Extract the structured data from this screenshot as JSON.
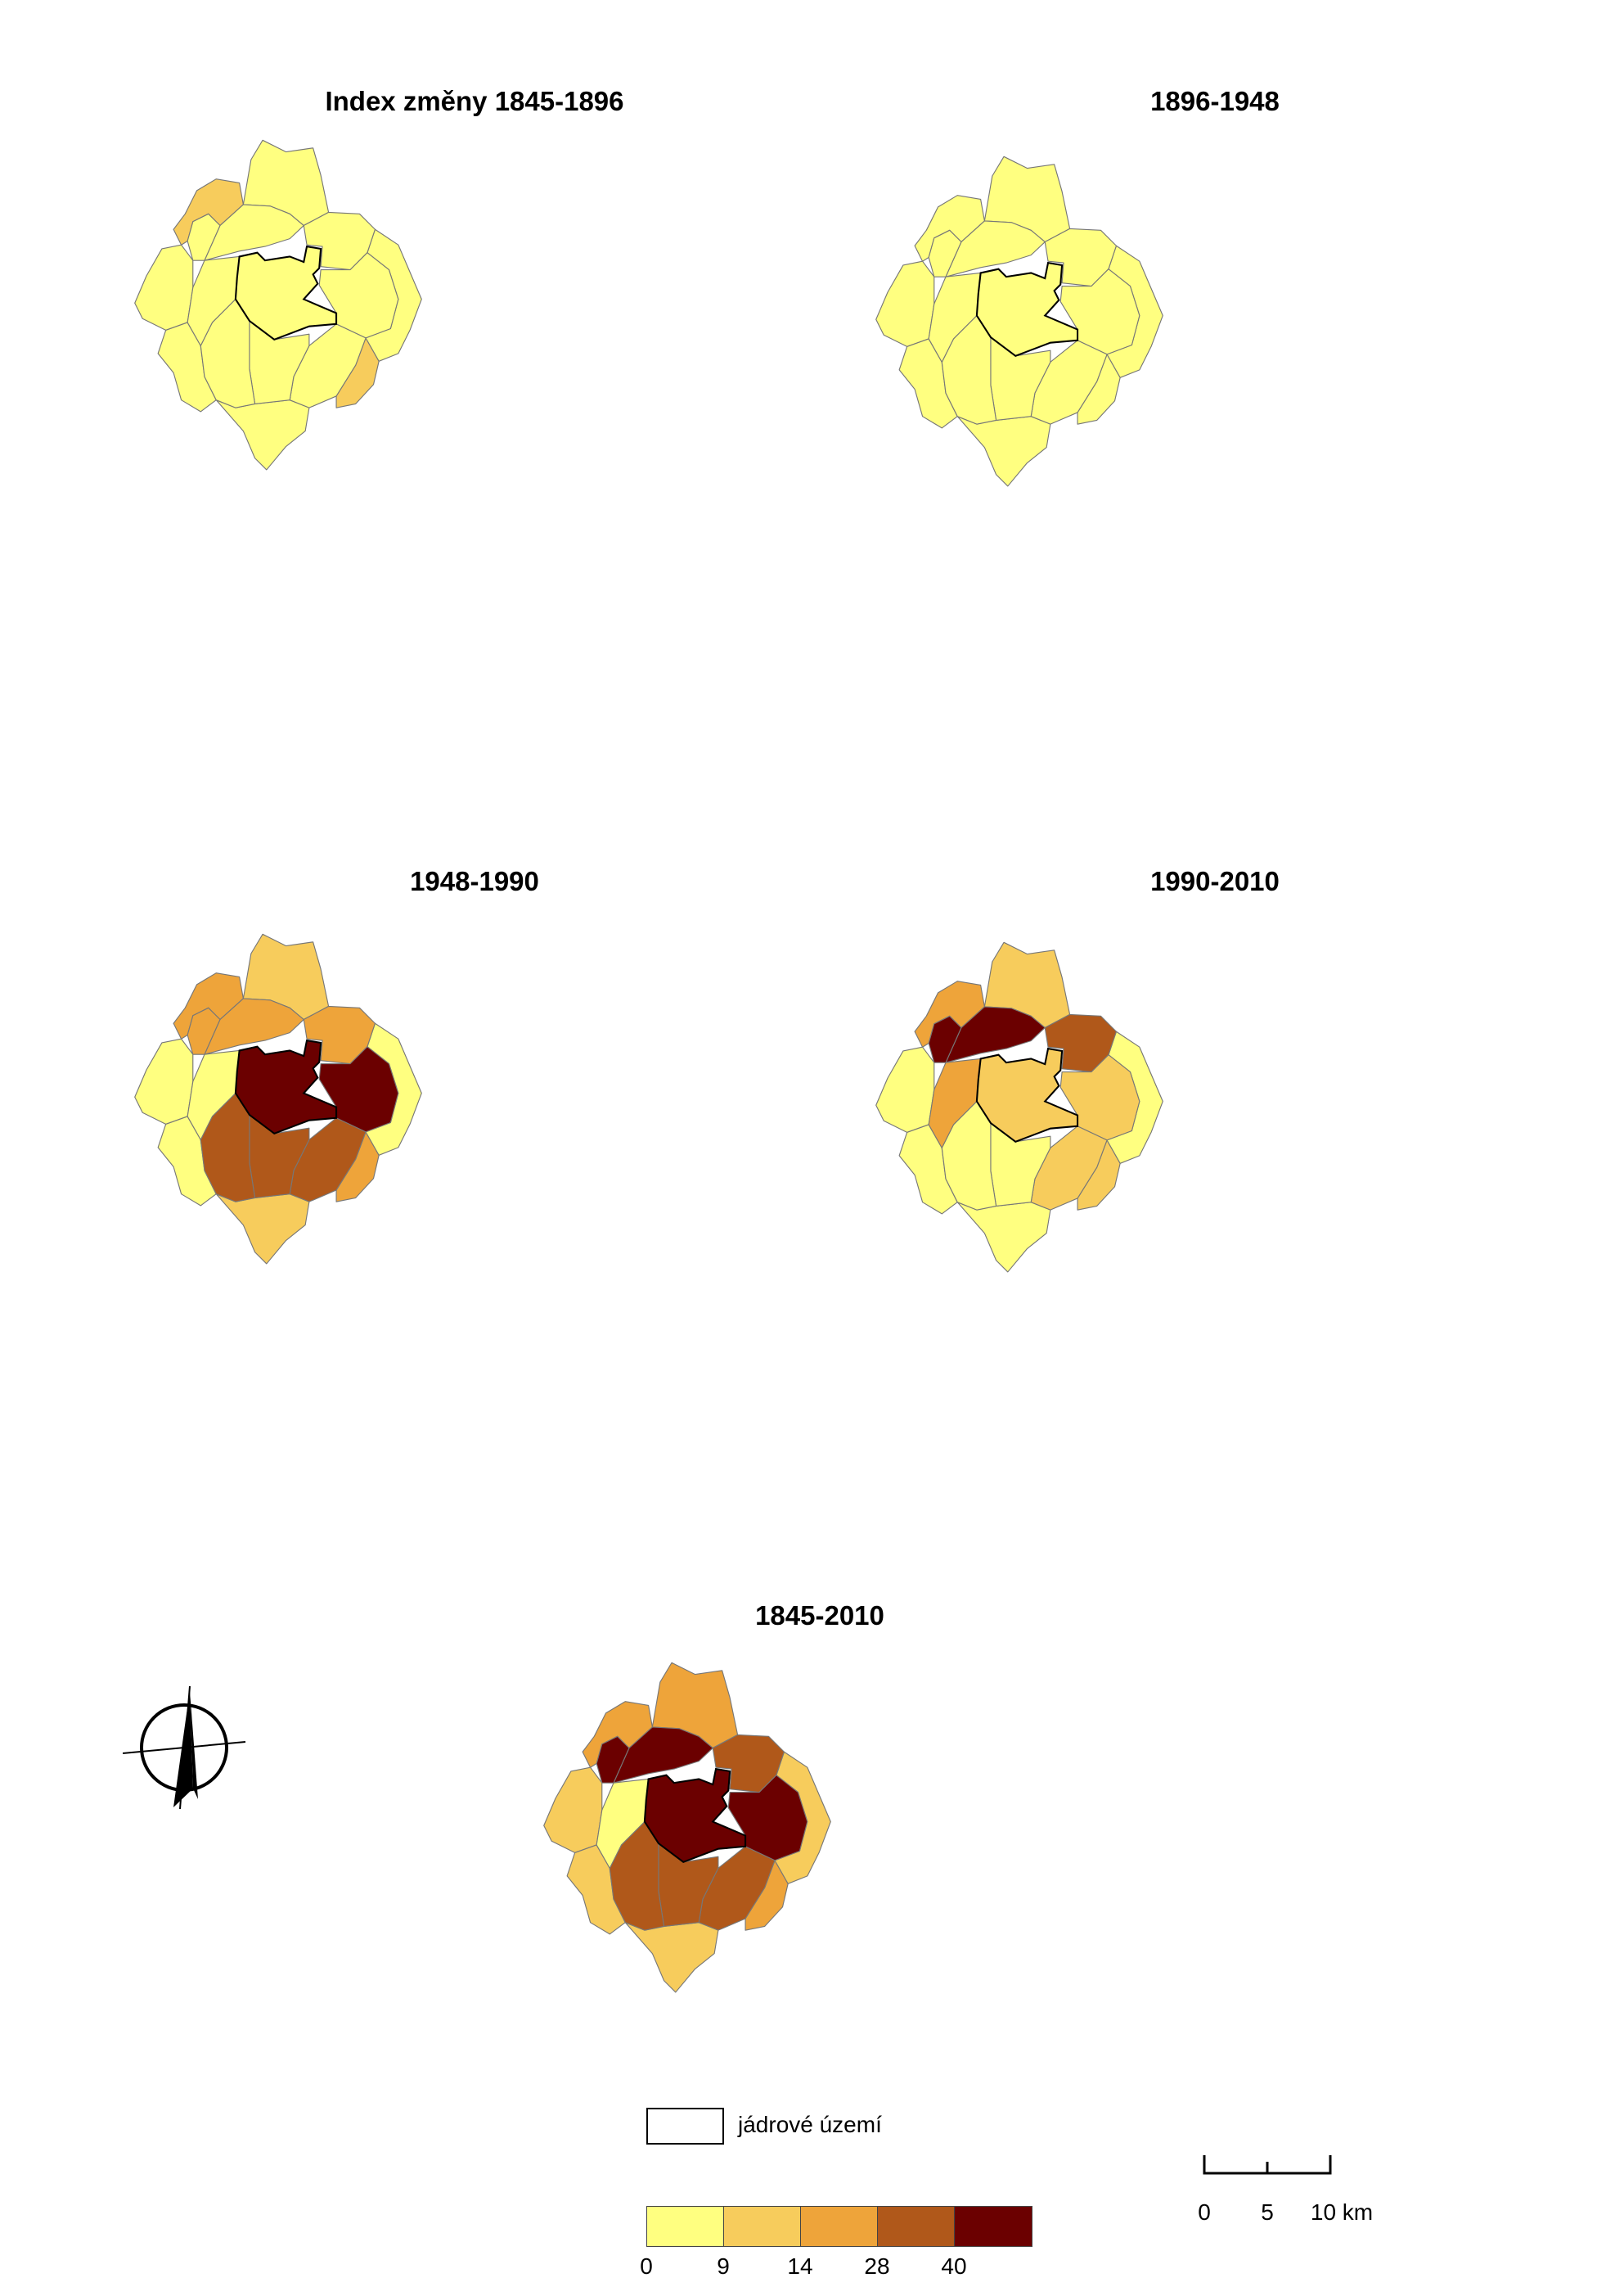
{
  "panels": [
    {
      "title": "Index změny 1845-1896",
      "regions": {
        "core": 0,
        "c_e": 0,
        "c_se": 0,
        "c_s": 0,
        "c_sw": 0,
        "c_w": 0,
        "c_nw": 0,
        "c_n": 0,
        "c_ne": 0,
        "o_n": 0,
        "o_nw": 1,
        "o_w": 0,
        "o_sw": 0,
        "o_s": 0,
        "o_se": 1,
        "o_e": 0
      }
    },
    {
      "title": "1896-1948",
      "regions": {
        "core": 0,
        "c_e": 0,
        "c_se": 0,
        "c_s": 0,
        "c_sw": 0,
        "c_w": 0,
        "c_nw": 0,
        "c_n": 0,
        "c_ne": 0,
        "o_n": 0,
        "o_nw": 0,
        "o_w": 0,
        "o_sw": 0,
        "o_s": 0,
        "o_se": 0,
        "o_e": 0
      }
    },
    {
      "title": "1948-1990",
      "regions": {
        "core": 4,
        "c_e": 4,
        "c_se": 3,
        "c_s": 3,
        "c_sw": 3,
        "c_w": 0,
        "c_nw": 2,
        "c_n": 2,
        "c_ne": 2,
        "o_n": 1,
        "o_nw": 2,
        "o_w": 0,
        "o_sw": 0,
        "o_s": 1,
        "o_se": 2,
        "o_e": 0
      }
    },
    {
      "title": "1990-2010",
      "regions": {
        "core": 1,
        "c_e": 1,
        "c_se": 1,
        "c_s": 0,
        "c_sw": 0,
        "c_w": 2,
        "c_nw": 4,
        "c_n": 4,
        "c_ne": 3,
        "o_n": 1,
        "o_nw": 2,
        "o_w": 0,
        "o_sw": 0,
        "o_s": 0,
        "o_se": 1,
        "o_e": 0
      }
    },
    {
      "title": "1845-2010",
      "regions": {
        "core": 4,
        "c_e": 4,
        "c_se": 3,
        "c_s": 3,
        "c_sw": 3,
        "c_w": 0,
        "c_nw": 4,
        "c_n": 4,
        "c_ne": 3,
        "o_n": 2,
        "o_nw": 2,
        "o_w": 1,
        "o_sw": 1,
        "o_s": 1,
        "o_se": 2,
        "o_e": 1
      }
    }
  ],
  "legend": {
    "core_label": "jádrové území",
    "classes": [
      "#ffff80",
      "#f7cc5c",
      "#eea43a",
      "#b0581a",
      "#6b0000"
    ],
    "breaks": [
      "0",
      "9",
      "14",
      "28",
      "40"
    ]
  },
  "scale": {
    "labels": [
      "0",
      "5",
      "10 km"
    ]
  },
  "icons": {
    "north_arrow": "north-arrow-icon"
  }
}
